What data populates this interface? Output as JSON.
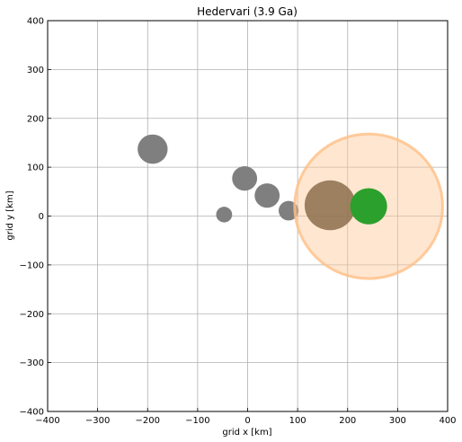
{
  "chart_data": {
    "type": "scatter",
    "title": "Hedervari (3.9 Ga)",
    "xlabel": "grid x [km]",
    "ylabel": "grid y [km]",
    "xlim": [
      -400,
      400
    ],
    "ylim": [
      -400,
      400
    ],
    "xticks": [
      "−400",
      "−300",
      "−200",
      "−100",
      "0",
      "100",
      "200",
      "300",
      "400"
    ],
    "yticks": [
      "−400",
      "−300",
      "−200",
      "−100",
      "0",
      "100",
      "200",
      "300",
      "400"
    ],
    "grid": true,
    "circles": [
      {
        "x": -190,
        "y": 137,
        "r": 30,
        "color": "#7f7f7f",
        "alpha": 1.0
      },
      {
        "x": -47,
        "y": 3,
        "r": 16,
        "color": "#7f7f7f",
        "alpha": 1.0
      },
      {
        "x": -6,
        "y": 77,
        "r": 25,
        "color": "#7f7f7f",
        "alpha": 1.0
      },
      {
        "x": 39,
        "y": 42,
        "r": 25,
        "color": "#7f7f7f",
        "alpha": 1.0
      },
      {
        "x": 82,
        "y": 11,
        "r": 20,
        "color": "#7f7f7f",
        "alpha": 1.0
      },
      {
        "x": 242,
        "y": 20,
        "r": 148,
        "color": "#ffc896",
        "alpha": 0.45,
        "edge": "#ffbf86"
      },
      {
        "x": 165,
        "y": 22,
        "r": 51,
        "color": "#8c6d4b",
        "alpha": 0.85
      },
      {
        "x": 242,
        "y": 20,
        "r": 37,
        "color": "#2ca02c",
        "alpha": 1.0
      }
    ]
  }
}
